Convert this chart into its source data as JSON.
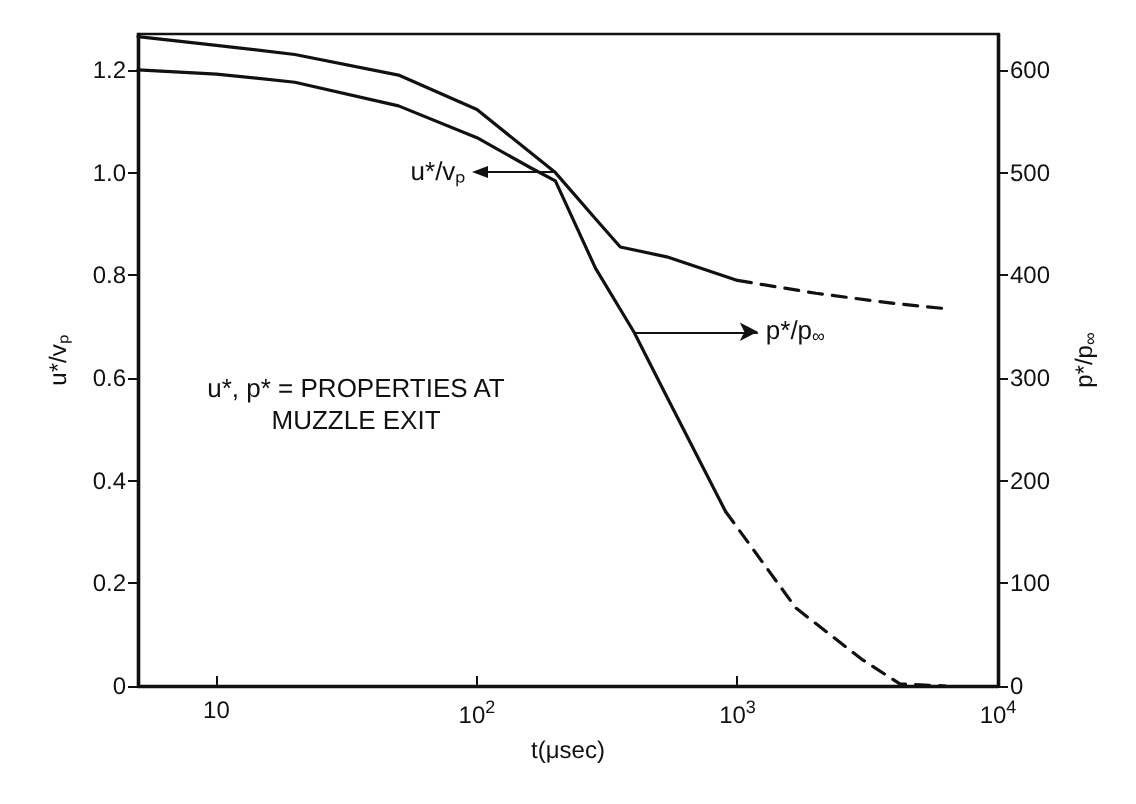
{
  "chart_data": {
    "type": "line",
    "xlabel": "t(μsec)",
    "ylabel": "u*/vₚ",
    "y2label": "p*/p$_{∞}$",
    "annotations": [
      "u*, p* = PROPERTIES AT\nMUZZLE EXIT",
      "u*/vₚ"
    ],
    "log": "x",
    "xlim": [
      5,
      10000
    ],
    "xticks": [
      {
        "value": 10,
        "label": "10"
      },
      {
        "value": 100,
        "label": "10$^{2}$"
      },
      {
        "value": 1000,
        "label": "10$^{3}$"
      },
      {
        "value": 10000,
        "label": "10$^{4}$"
      }
    ],
    "ylim": [
      0,
      1.27
    ],
    "yticks": [
      0,
      0.2,
      0.4,
      0.6,
      0.8,
      {
        "value": 1,
        "label": "1.0"
      },
      1.2
    ],
    "y2lim": [
      0,
      635
    ],
    "y2ticks": [
      0,
      100,
      200,
      300,
      400,
      500,
      600
    ],
    "grid": false,
    "marker": "none",
    "legend": "right",
    "series": [
      {
        "color": "#111111",
        "line_style": "solid",
        "x": [
          5,
          10,
          20,
          50,
          100,
          200,
          285,
          355,
          535,
          1000
        ],
        "values": [
          1.265,
          1.248,
          1.23,
          1.19,
          1.123,
          1.0,
          0.91,
          0.855,
          0.836,
          0.79
        ]
      },
      {
        "color": "#111111",
        "line_style": "dashed",
        "x": [
          1000,
          2000,
          4000,
          6300
        ],
        "values": [
          0.79,
          0.765,
          0.745,
          0.735
        ]
      },
      {
        "name": "p*/p$_{∞}$",
        "color": "#111111",
        "line_style": "solid",
        "axis": "y2",
        "x": [
          5,
          10,
          20,
          50,
          100,
          160,
          200,
          285,
          400,
          535,
          900
        ],
        "values": [
          600,
          596,
          588,
          565,
          534,
          505,
          492,
          407,
          345,
          282,
          170
        ]
      },
      {
        "color": "#111111",
        "line_style": "dashed",
        "axis": "y2",
        "x": [
          900,
          1675,
          3000,
          4200,
          6300
        ],
        "values": [
          170,
          76,
          26,
          2,
          0
        ]
      }
    ]
  }
}
